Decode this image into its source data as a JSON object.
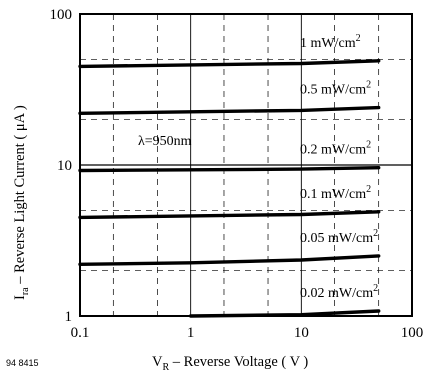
{
  "chart_data": {
    "type": "line",
    "xlabel": "V",
    "xlabel_sub": "R",
    "xlabel_rest": " – Reverse Voltage ( V )",
    "ylabel": "I",
    "ylabel_sub": "ra",
    "ylabel_rest": " – Reverse Light Current ( μA )",
    "x_scale": "log",
    "y_scale": "log",
    "xlim": [
      0.1,
      100
    ],
    "ylim": [
      1,
      100
    ],
    "x_ticks": [
      "0.1",
      "1",
      "10",
      "100"
    ],
    "y_ticks": [
      "1",
      "10",
      "100"
    ],
    "grid": true,
    "annotation": "λ=950nm",
    "figure_code": "94 8415",
    "series": [
      {
        "name": "1 mW/cm",
        "sup": "2",
        "x": [
          0.1,
          1,
          10,
          50
        ],
        "y": [
          45,
          46,
          47,
          49
        ]
      },
      {
        "name": "0.5 mW/cm",
        "sup": "2",
        "x": [
          0.1,
          1,
          10,
          50
        ],
        "y": [
          22,
          22.5,
          23,
          24
        ]
      },
      {
        "name": "0.2 mW/cm",
        "sup": "2",
        "x": [
          0.1,
          1,
          10,
          50
        ],
        "y": [
          9.2,
          9.3,
          9.4,
          9.6
        ]
      },
      {
        "name": "0.1 mW/cm",
        "sup": "2",
        "x": [
          0.1,
          1,
          10,
          50
        ],
        "y": [
          4.5,
          4.6,
          4.7,
          4.9
        ]
      },
      {
        "name": "0.05 mW/cm",
        "sup": "2",
        "x": [
          0.1,
          1,
          10,
          50
        ],
        "y": [
          2.2,
          2.25,
          2.35,
          2.5
        ]
      },
      {
        "name": "0.02 mW/cm",
        "sup": "2",
        "x": [
          1,
          10,
          50
        ],
        "y": [
          0.98,
          1.02,
          1.08
        ]
      }
    ]
  }
}
